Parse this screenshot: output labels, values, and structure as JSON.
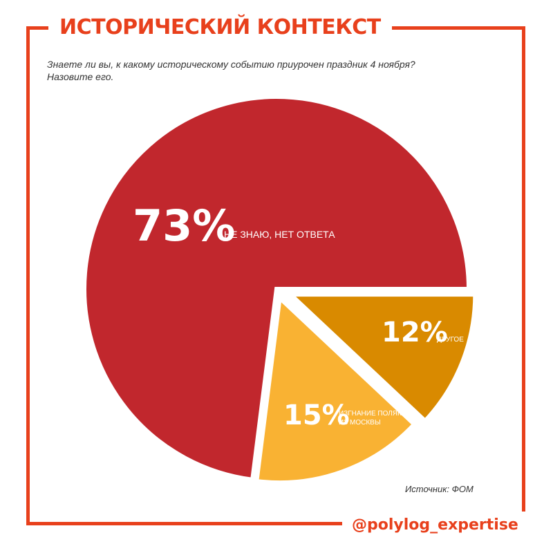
{
  "header": {
    "title": "ИСТОРИЧЕСКИЙ КОНТЕКСТ"
  },
  "question": {
    "line1": "Знаете ли вы, к какому историческому событию приурочен праздник 4 ноября?",
    "line2": "Назовите его."
  },
  "source": "Источник: ФОМ",
  "handle": "@polylog_expertise",
  "colors": {
    "accent": "#e8401c"
  },
  "chart_data": {
    "type": "pie",
    "slices": [
      {
        "value": 73,
        "label_pct": "73%",
        "label": [
          "НЕ ЗНАЮ, НЕТ ОТВЕТА"
        ],
        "color": "#c1272d"
      },
      {
        "value": 15,
        "label_pct": "15%",
        "label": [
          "ИЗГНАНИЕ ПОЛЯКОВ",
          "ИЗ МОСКВЫ"
        ],
        "color": "#f9b233"
      },
      {
        "value": 12,
        "label_pct": "12%",
        "label": [
          "ДРУГОЕ"
        ],
        "color": "#d98a00"
      }
    ]
  }
}
